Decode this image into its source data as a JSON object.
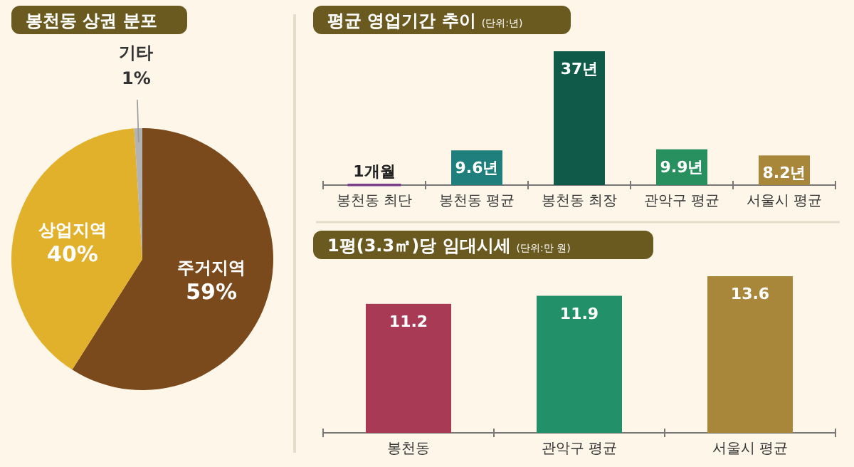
{
  "chart_data": [
    {
      "type": "pie",
      "title": "봉천동 상권 분포",
      "categories": [
        "주거지역",
        "상업지역",
        "기타"
      ],
      "values": [
        59,
        40,
        1
      ],
      "colors": [
        "#7b4a1c",
        "#e2b12c",
        "#b3b3b3"
      ],
      "value_labels": [
        "59%",
        "40%",
        "1%"
      ]
    },
    {
      "type": "bar",
      "title": "평균 영업기간 추이",
      "subtitle": "(단위:년)",
      "categories": [
        "봉천동 최단",
        "봉천동 평균",
        "봉천동 최장",
        "관악구 평균",
        "서울시 평균"
      ],
      "values": [
        0.08,
        9.6,
        37,
        9.9,
        8.2
      ],
      "colors": [
        "#7a3a8a",
        "#1f7f7c",
        "#0f5a48",
        "#28905f",
        "#a8863a"
      ],
      "value_labels": [
        null,
        "9.6년",
        "37년",
        "9.9년",
        "8.2년"
      ],
      "annotations": [
        {
          "text": "1개월",
          "x": "봉천동 최단",
          "y": 0.08
        }
      ]
    },
    {
      "type": "bar",
      "title": "1평(3.3㎡)당 임대시세",
      "subtitle": "(단위:만 원)",
      "categories": [
        "봉천동",
        "관악구 평균",
        "서울시 평균"
      ],
      "values": [
        11.2,
        11.9,
        13.6
      ],
      "colors": [
        "#a83a55",
        "#229068",
        "#a8863a"
      ],
      "data_labels": true
    }
  ]
}
